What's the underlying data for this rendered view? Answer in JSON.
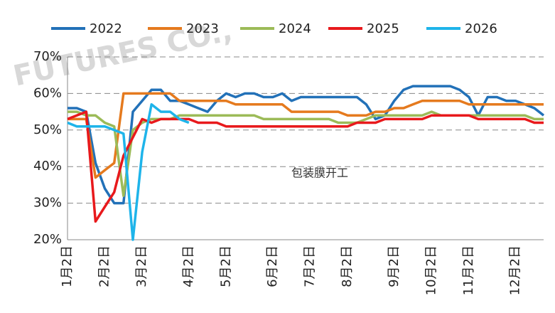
{
  "watermark": "FUTURES CO.,",
  "chart_data": {
    "type": "line",
    "annotation": "包装膜开工",
    "categories": [
      "1月2日",
      null,
      null,
      null,
      "2月2日",
      null,
      null,
      null,
      "3月2日",
      null,
      null,
      null,
      null,
      "4月2日",
      null,
      null,
      null,
      "5月2日",
      null,
      null,
      null,
      null,
      "6月2日",
      null,
      null,
      null,
      "7月2日",
      null,
      null,
      null,
      "8月2日",
      null,
      null,
      null,
      null,
      "9月2日",
      null,
      null,
      null,
      "10月2日",
      null,
      null,
      null,
      "11月2日",
      null,
      null,
      null,
      null,
      "12月2日",
      null,
      null,
      null
    ],
    "series": [
      {
        "name": "2022",
        "color": "#2271b8",
        "values": [
          56,
          56,
          55,
          41,
          34,
          30,
          30,
          55,
          58,
          61,
          61,
          58,
          58,
          57,
          56,
          55,
          58,
          60,
          59,
          60,
          60,
          59,
          59,
          60,
          58,
          59,
          59,
          59,
          59,
          59,
          59,
          59,
          57,
          53,
          54,
          58,
          61,
          62,
          62,
          62,
          62,
          62,
          61,
          59,
          54,
          59,
          59,
          58,
          58,
          57,
          56,
          54
        ]
      },
      {
        "name": "2023",
        "color": "#e57a1e",
        "values": [
          53,
          53,
          53,
          37,
          39,
          41,
          60,
          60,
          60,
          60,
          60,
          60,
          58,
          58,
          58,
          58,
          58,
          58,
          57,
          57,
          57,
          57,
          57,
          57,
          55,
          55,
          55,
          55,
          55,
          55,
          54,
          54,
          54,
          55,
          55,
          56,
          56,
          57,
          58,
          58,
          58,
          58,
          58,
          57,
          57,
          57,
          57,
          57,
          57,
          57,
          57,
          57
        ]
      },
      {
        "name": "2024",
        "color": "#9cbb58",
        "values": [
          55,
          55,
          54,
          54,
          52,
          51,
          32,
          50,
          52,
          53,
          53,
          53,
          54,
          54,
          54,
          54,
          54,
          54,
          54,
          54,
          54,
          53,
          53,
          53,
          53,
          53,
          53,
          53,
          53,
          52,
          52,
          52,
          53,
          54,
          54,
          54,
          54,
          54,
          54,
          55,
          54,
          54,
          54,
          54,
          54,
          54,
          54,
          54,
          54,
          54,
          53,
          53
        ]
      },
      {
        "name": "2025",
        "color": "#e8191c",
        "values": [
          53,
          54,
          55,
          25,
          29,
          33,
          43,
          48,
          53,
          52,
          53,
          53,
          53,
          53,
          52,
          52,
          52,
          51,
          51,
          51,
          51,
          51,
          51,
          51,
          51,
          51,
          51,
          51,
          51,
          51,
          51,
          52,
          52,
          52,
          53,
          53,
          53,
          53,
          53,
          54,
          54,
          54,
          54,
          54,
          53,
          53,
          53,
          53,
          53,
          53,
          52,
          52
        ]
      },
      {
        "name": "2026",
        "color": "#1eb4ea",
        "values": [
          52,
          51,
          51,
          51,
          51,
          50,
          49,
          20,
          44,
          57,
          55,
          55,
          53,
          52,
          null,
          null,
          null,
          null,
          null,
          null,
          null,
          null,
          null,
          null,
          null,
          null,
          null,
          null,
          null,
          null,
          null,
          null,
          null,
          null,
          null,
          null,
          null,
          null,
          null,
          null,
          null,
          null,
          null,
          null,
          null,
          null,
          null,
          null,
          null,
          null,
          null,
          null
        ]
      }
    ],
    "ylim": [
      20,
      70
    ],
    "yticks": [
      {
        "value": 20,
        "label": "20%"
      },
      {
        "value": 30,
        "label": "30%"
      },
      {
        "value": 40,
        "label": "40%"
      },
      {
        "value": 50,
        "label": "50%"
      },
      {
        "value": 60,
        "label": "60%"
      },
      {
        "value": 70,
        "label": "70%"
      }
    ],
    "grid": true,
    "legend": "top"
  }
}
